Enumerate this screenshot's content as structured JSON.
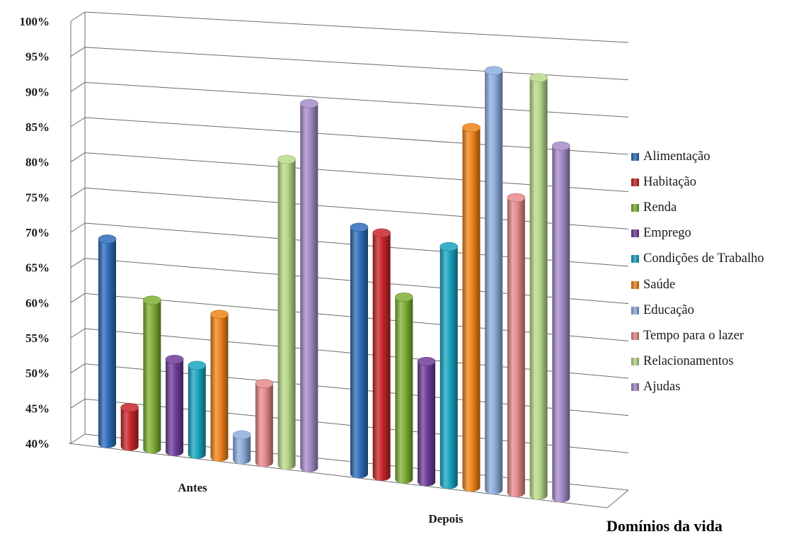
{
  "chart_data": {
    "type": "bar",
    "xlabel": "Domínios da vida",
    "categories": [
      "Antes",
      "Depois"
    ],
    "yticks": [
      "40%",
      "45%",
      "50%",
      "55%",
      "60%",
      "65%",
      "70%",
      "75%",
      "80%",
      "85%",
      "90%",
      "95%",
      "100%"
    ],
    "ylim": [
      40,
      100
    ],
    "grid": true,
    "legend_position": "right",
    "series": [
      {
        "name": "Alimentação",
        "color": "#2e6dba",
        "values": [
          69,
          74
        ]
      },
      {
        "name": "Habitação",
        "color": "#c8262a",
        "values": [
          45.5,
          73.5
        ]
      },
      {
        "name": "Renda",
        "color": "#7fb034",
        "values": [
          61,
          65
        ]
      },
      {
        "name": "Emprego",
        "color": "#6e3d99",
        "values": [
          53,
          56.5
        ]
      },
      {
        "name": "Condições de Trabalho",
        "color": "#1aa4c0",
        "values": [
          52.5,
          72.5
        ]
      },
      {
        "name": "Saúde",
        "color": "#f0841a",
        "values": [
          60,
          89
        ]
      },
      {
        "name": "Educação",
        "color": "#8eaede",
        "values": [
          43.5,
          97
        ]
      },
      {
        "name": "Tempo para o lazer",
        "color": "#e6898c",
        "values": [
          51,
          80
        ]
      },
      {
        "name": "Relacionamentos",
        "color": "#b8d98a",
        "values": [
          82.5,
          96.5
        ]
      },
      {
        "name": "Ajudas",
        "color": "#a58cc9",
        "values": [
          90.5,
          87.5
        ]
      }
    ]
  }
}
